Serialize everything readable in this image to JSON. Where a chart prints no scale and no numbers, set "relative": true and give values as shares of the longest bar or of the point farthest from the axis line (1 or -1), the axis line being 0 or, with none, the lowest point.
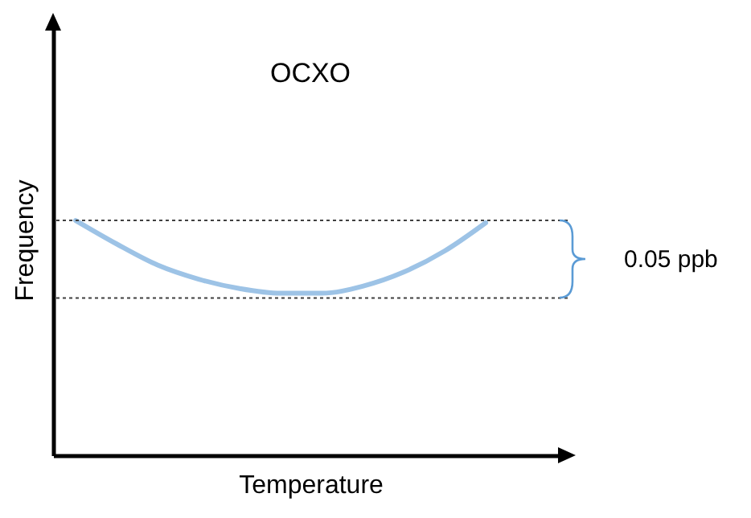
{
  "chart_data": {
    "type": "line",
    "title": "OCXO",
    "xlabel": "Temperature",
    "ylabel": "Frequency",
    "relative": true,
    "categories": [
      null,
      null,
      null,
      null,
      null,
      null,
      null,
      null,
      null,
      null,
      null
    ],
    "series": [
      {
        "color": "#9dc3e6",
        "values": [
          1.0,
          0.9,
          0.81,
          0.75,
          0.71,
          0.69,
          0.69,
          0.72,
          0.78,
          0.87,
          0.99
        ]
      }
    ],
    "ref_lines": [
      {
        "axis": "y",
        "value": 1.0,
        "line_style": "dotted",
        "color": "#404040"
      },
      {
        "axis": "y",
        "value": 0.67,
        "line_style": "dotted",
        "color": "#404040"
      }
    ],
    "annotations": [
      "0.05 ppb"
    ],
    "grid": false,
    "marker": "none",
    "line_style": "solid"
  }
}
